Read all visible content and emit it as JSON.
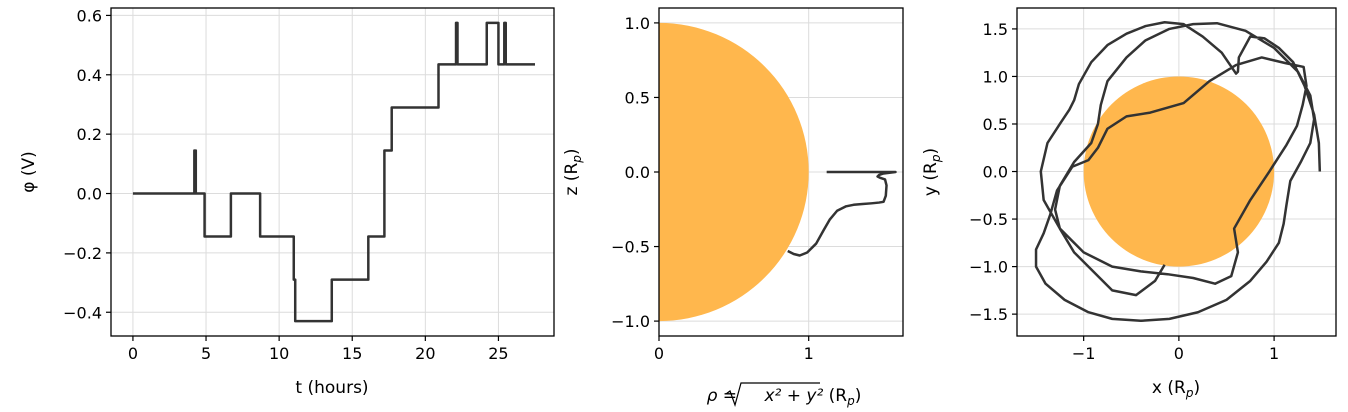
{
  "colors": {
    "trace": "#333333",
    "planet": "#ffb74d",
    "grid": "#dcdcdc"
  },
  "chart_data": [
    {
      "type": "line",
      "xlabel": "t (hours)",
      "ylabel": "φ (V)",
      "xlim": [
        -1.5,
        28.8
      ],
      "ylim": [
        -0.48,
        0.625
      ],
      "xticks": [
        0,
        5,
        10,
        15,
        20,
        25
      ],
      "yticks": [
        -0.4,
        -0.2,
        0.0,
        0.2,
        0.4,
        0.6
      ],
      "xtick_labels": [
        "0",
        "5",
        "10",
        "15",
        "20",
        "25"
      ],
      "ytick_labels": [
        "−0.4",
        "−0.2",
        "0.0",
        "0.2",
        "0.4",
        "0.6"
      ],
      "grid": true,
      "series": [
        {
          "x": [
            0,
            4.2,
            4.2,
            4.2,
            4.2,
            4.3,
            4.3,
            4.3,
            4.3,
            4.9,
            4.9,
            6.7,
            6.7,
            8.7,
            8.7,
            11.0,
            11.0,
            11.1,
            11.1,
            13.6,
            13.6,
            16.1,
            16.1,
            17.2,
            17.2,
            17.4,
            17.4,
            17.7,
            17.7,
            20.9,
            20.9,
            22.1,
            22.1,
            22.2,
            22.2,
            24.2,
            24.2,
            25.0,
            25.0,
            25.4,
            25.4,
            25.5,
            25.5,
            27.5
          ],
          "y": [
            0.0,
            0.0,
            0.0,
            0.145,
            0.0,
            0.0,
            0.145,
            0.145,
            0.0,
            0.0,
            -0.145,
            -0.145,
            0.0,
            0.0,
            -0.145,
            -0.145,
            -0.29,
            -0.29,
            -0.43,
            -0.43,
            -0.29,
            -0.29,
            -0.145,
            -0.145,
            0.145,
            0.145,
            0.145,
            0.145,
            0.29,
            0.29,
            0.435,
            0.435,
            0.575,
            0.575,
            0.435,
            0.435,
            0.575,
            0.575,
            0.435,
            0.435,
            0.575,
            0.575,
            0.435,
            0.435
          ]
        }
      ]
    },
    {
      "type": "line",
      "xlabel": "ρ = √(x² + y²) (Rₚ)",
      "xlabel_parts": {
        "rho": "ρ = ",
        "expr": "x² + y²",
        "unit": " (R",
        "sub": "p",
        "close": ")"
      },
      "ylabel": "z (Rₚ)",
      "ylabel_parts": {
        "main": "z (R",
        "sub": "p",
        "close": ")"
      },
      "xlim": [
        0,
        1.63
      ],
      "ylim": [
        -1.1,
        1.1
      ],
      "xticks": [
        0,
        1
      ],
      "yticks": [
        -1.0,
        -0.5,
        0.0,
        0.5,
        1.0
      ],
      "xtick_labels": [
        "0",
        "1"
      ],
      "ytick_labels": [
        "−1.0",
        "−0.5",
        "0.0",
        "0.5",
        "1.0"
      ],
      "grid": true,
      "planet": {
        "cx": 0,
        "cy": 0,
        "r": 1.0
      },
      "series": [
        {
          "x": [
            0.86,
            0.9,
            0.94,
            0.99,
            1.05,
            1.1,
            1.14,
            1.19,
            1.25,
            1.3,
            1.36,
            1.42,
            1.47,
            1.5,
            1.515,
            1.52,
            1.51,
            1.48,
            1.46,
            1.47,
            1.5,
            1.54,
            1.58,
            1.56,
            1.5,
            1.42,
            1.32,
            1.22,
            1.12
          ],
          "y": [
            -0.53,
            -0.55,
            -0.56,
            -0.54,
            -0.48,
            -0.39,
            -0.32,
            -0.26,
            -0.23,
            -0.22,
            -0.215,
            -0.21,
            -0.205,
            -0.2,
            -0.16,
            -0.09,
            -0.05,
            -0.04,
            -0.03,
            -0.02,
            -0.01,
            -0.005,
            0.0,
            0.0,
            0.0,
            0.0,
            0.0,
            0.0,
            0.0
          ]
        }
      ]
    },
    {
      "type": "line",
      "xlabel": "x (Rₚ)",
      "xlabel_parts": {
        "main": "x (R",
        "sub": "p",
        "close": ")"
      },
      "ylabel": "y (Rₚ)",
      "ylabel_parts": {
        "main": "y (R",
        "sub": "p",
        "close": ")"
      },
      "xlim": [
        -1.7,
        1.65
      ],
      "ylim": [
        -1.73,
        1.72
      ],
      "xticks": [
        -1,
        0,
        1
      ],
      "yticks": [
        -1.5,
        -1.0,
        -0.5,
        0.0,
        0.5,
        1.0,
        1.5
      ],
      "xtick_labels": [
        "−1",
        "0",
        "1"
      ],
      "ytick_labels": [
        "−1.5",
        "−1.0",
        "−0.5",
        "0.0",
        "0.5",
        "1.0",
        "1.5"
      ],
      "grid": true,
      "planet": {
        "cx": 0,
        "cy": 0,
        "r": 1.0
      },
      "series": [
        {
          "x": [
            1.48,
            1.47,
            1.42,
            1.32,
            1.2,
            1.05,
            0.9,
            0.75,
            0.63,
            0.62,
            0.6,
            0.45,
            0.25,
            0.05,
            -0.15,
            -0.35,
            -0.55,
            -0.75,
            -0.92,
            -1.05,
            -1.1,
            -1.15,
            -1.25,
            -1.38,
            -1.45,
            -1.42,
            -1.25,
            -1.0,
            -0.7,
            -0.4,
            -0.12,
            0.15,
            0.38,
            0.55,
            0.62,
            0.58,
            0.75,
            0.95,
            1.13,
            1.24,
            1.3,
            1.34,
            1.31,
            1.12,
            0.87,
            0.6,
            0.32,
            0.05,
            -0.3,
            -0.55,
            -0.75,
            -0.85,
            -0.95,
            -1.12,
            -1.28,
            -1.35,
            -1.42,
            -1.5,
            -1.5,
            -1.4,
            -1.2,
            -0.95,
            -0.7,
            -0.4,
            -0.1,
            0.2,
            0.5,
            0.75,
            0.92,
            1.05,
            1.1,
            1.13,
            1.17,
            1.28,
            1.38,
            1.42,
            1.38,
            1.25,
            1.0,
            0.7,
            0.4,
            0.15,
            -0.1,
            -0.35,
            -0.55,
            -0.75,
            -0.82,
            -0.85,
            -0.92,
            -1.1,
            -1.25,
            -1.3,
            -1.25,
            -1.1,
            -0.9,
            -0.7,
            -0.45,
            -0.25,
            -0.15
          ],
          "y": [
            0.0,
            0.3,
            0.6,
            0.9,
            1.15,
            1.3,
            1.4,
            1.42,
            1.2,
            1.05,
            1.03,
            1.25,
            1.42,
            1.55,
            1.57,
            1.53,
            1.45,
            1.33,
            1.15,
            0.92,
            0.75,
            0.65,
            0.5,
            0.3,
            0.0,
            -0.3,
            -0.6,
            -0.85,
            -1.0,
            -1.05,
            -1.08,
            -1.12,
            -1.18,
            -1.1,
            -0.85,
            -0.6,
            -0.3,
            0.0,
            0.28,
            0.48,
            0.7,
            0.9,
            1.1,
            1.14,
            1.2,
            1.12,
            0.95,
            0.72,
            0.62,
            0.58,
            0.45,
            0.25,
            0.12,
            0.05,
            -0.2,
            -0.45,
            -0.65,
            -0.82,
            -1.0,
            -1.18,
            -1.35,
            -1.48,
            -1.55,
            -1.57,
            -1.55,
            -1.48,
            -1.35,
            -1.15,
            -0.95,
            -0.75,
            -0.55,
            -0.35,
            -0.1,
            0.1,
            0.3,
            0.55,
            0.8,
            1.05,
            1.3,
            1.48,
            1.56,
            1.55,
            1.5,
            1.38,
            1.2,
            0.95,
            0.7,
            0.5,
            0.3,
            0.1,
            -0.15,
            -0.4,
            -0.6,
            -0.85,
            -1.05,
            -1.25,
            -1.3,
            -1.15,
            -0.98
          ]
        }
      ]
    }
  ]
}
